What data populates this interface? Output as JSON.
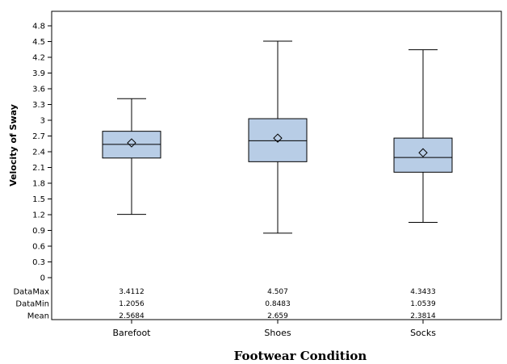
{
  "chart_data": {
    "type": "box",
    "xlabel": "Footwear Condition",
    "ylabel": "Velocity of Sway",
    "ylim": [
      0,
      4.8
    ],
    "yticks": [
      "0",
      "0.3",
      "0.6",
      "0.9",
      "1.2",
      "1.5",
      "1.8",
      "2.1",
      "2.4",
      "2.7",
      "3",
      "3.3",
      "3.6",
      "3.9",
      "4.2",
      "4.5",
      "4.8"
    ],
    "grid": false,
    "box_color": "#b8cde6",
    "categories": [
      "Barefoot",
      "Shoes",
      "Socks"
    ],
    "boxes": [
      {
        "category": "Barefoot",
        "min": 1.2056,
        "q1": 2.28,
        "median": 2.54,
        "q3": 2.79,
        "max": 3.4112,
        "mean": 2.5684
      },
      {
        "category": "Shoes",
        "min": 0.8483,
        "q1": 2.21,
        "median": 2.61,
        "q3": 3.03,
        "max": 4.507,
        "mean": 2.659
      },
      {
        "category": "Socks",
        "min": 1.0539,
        "q1": 2.01,
        "median": 2.29,
        "q3": 2.66,
        "max": 4.3433,
        "mean": 2.3814
      }
    ],
    "stats_table": {
      "rows": [
        {
          "label": "DataMax",
          "values": [
            "3.4112",
            "4.507",
            "4.3433"
          ]
        },
        {
          "label": "DataMin",
          "values": [
            "1.2056",
            "0.8483",
            "1.0539"
          ]
        },
        {
          "label": "Mean",
          "values": [
            "2.5684",
            "2.659",
            "2.3814"
          ]
        }
      ]
    }
  }
}
